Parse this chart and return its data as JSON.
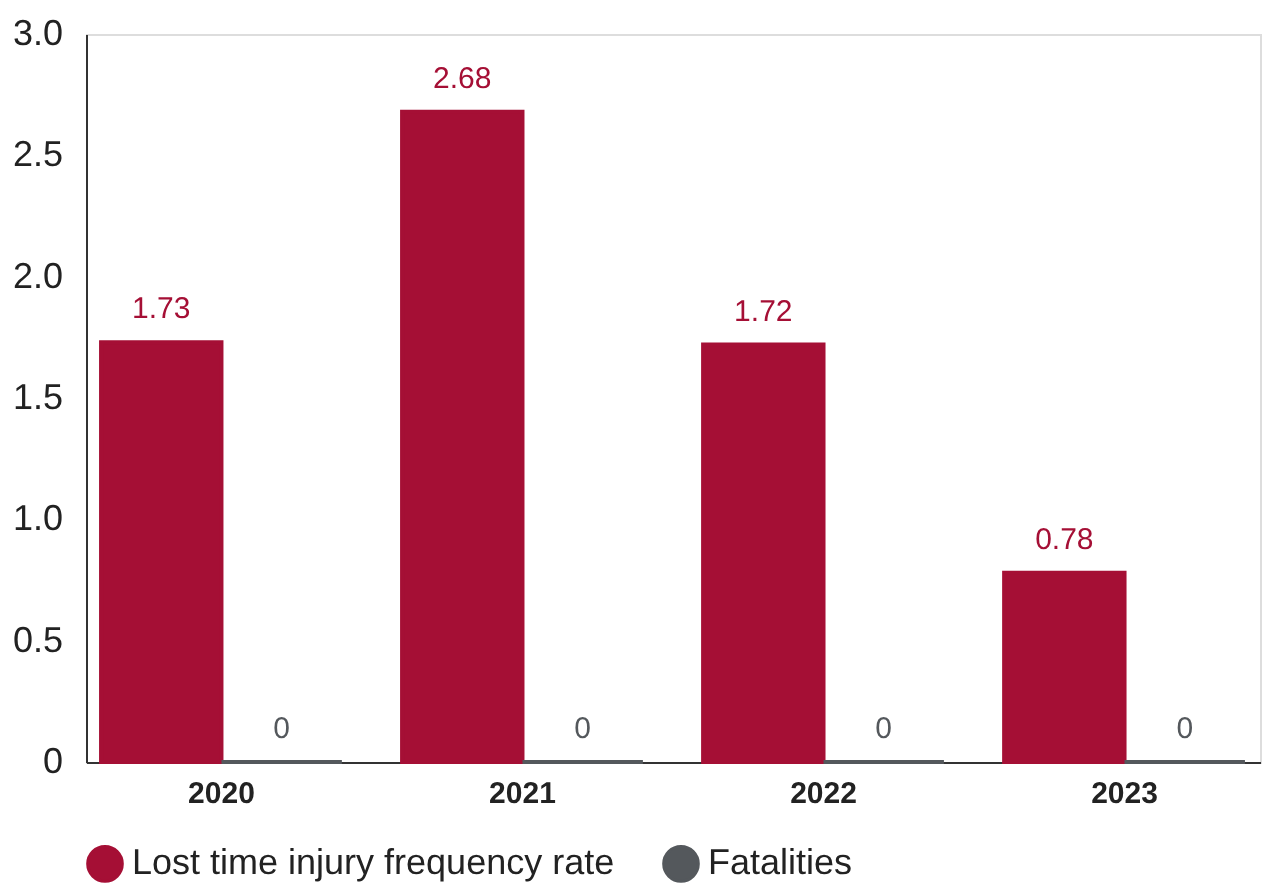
{
  "chart_data": {
    "type": "bar",
    "categories": [
      "2020",
      "2021",
      "2022",
      "2023"
    ],
    "series": [
      {
        "name": "Lost time injury frequency rate",
        "color": "#a50f35",
        "values": [
          1.73,
          2.68,
          1.72,
          0.78
        ]
      },
      {
        "name": "Fatalities",
        "color": "#54585c",
        "values": [
          0,
          0,
          0,
          0
        ]
      }
    ],
    "ylim": [
      0,
      3.0
    ],
    "yticks": [
      0,
      {
        "value": 0.5,
        "label": "0.5"
      },
      {
        "value": 1,
        "label": "1.0"
      },
      {
        "value": 1.5,
        "label": "1.5"
      },
      {
        "value": 2,
        "label": "2.0"
      },
      {
        "value": 2.5,
        "label": "2.5"
      },
      {
        "value": 3,
        "label": "3.0"
      }
    ],
    "data_labels": true,
    "grid": false,
    "legend": "bottom"
  }
}
